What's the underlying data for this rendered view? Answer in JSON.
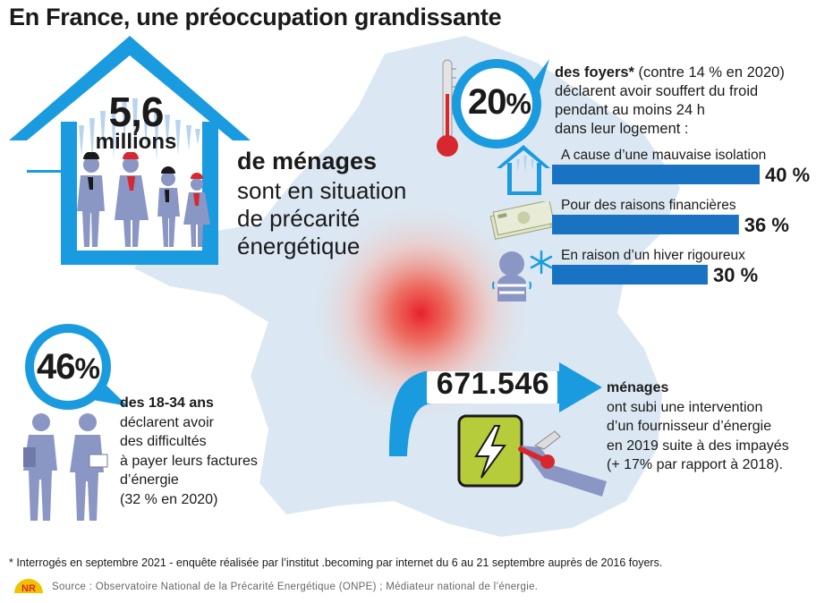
{
  "title": "En France, une préoccupation grandissante",
  "block_households": {
    "number": "5,6",
    "unit": "millions",
    "heading": "de ménages",
    "lines": [
      "sont en situation",
      "de précarité",
      "énergétique"
    ]
  },
  "block_cold": {
    "percent": "20",
    "percent_sign": "%",
    "lead": "des foyers*",
    "compare": " (contre 14 % en 2020)",
    "lines": [
      "déclarent avoir souffert du froid",
      "pendant au moins 24 h",
      "dans leur logement :"
    ]
  },
  "block_young": {
    "percent": "46",
    "percent_sign": "%",
    "lead": "des 18-34 ans",
    "lines": [
      "déclarent avoir",
      "des difficultés",
      "à payer leurs factures",
      "d’énergie",
      "(32 % en 2020)"
    ]
  },
  "block_interventions": {
    "number": "671.546",
    "lead": "ménages",
    "lines": [
      "ont subi une intervention",
      "d’un fournisseur d’énergie",
      "en 2019 suite à des impayés",
      "(+ 17% par rapport à 2018)."
    ]
  },
  "chart_data": {
    "type": "bar",
    "categories": [
      "A cause d’une mauvaise isolation",
      "Pour des raisons financières",
      "En raison d’un hiver rigoureux"
    ],
    "values": [
      40,
      36,
      30
    ],
    "value_labels": [
      "40 %",
      "36 %",
      "30 %"
    ],
    "unit": "%",
    "bar_color": "#1a73c2",
    "icons": [
      "house-icon",
      "banknotes-icon",
      "shivering-person-icon"
    ]
  },
  "footnote": "* Interrogés en septembre 2021 - enquête réalisée par l’institut .becoming par internet du 6 au 21 septembre auprès de 2016 foyers.",
  "source": "Source : Observatoire National de la Précarité Energétique (ONPE) ; Médiateur national de l’énergie.",
  "logo_text": "NR",
  "colors": {
    "accent": "#1a9be0",
    "bar": "#1a73c2",
    "map": "#dbe8f3",
    "figure": "#8a96c4",
    "plug_green": "#b6cc3a"
  }
}
